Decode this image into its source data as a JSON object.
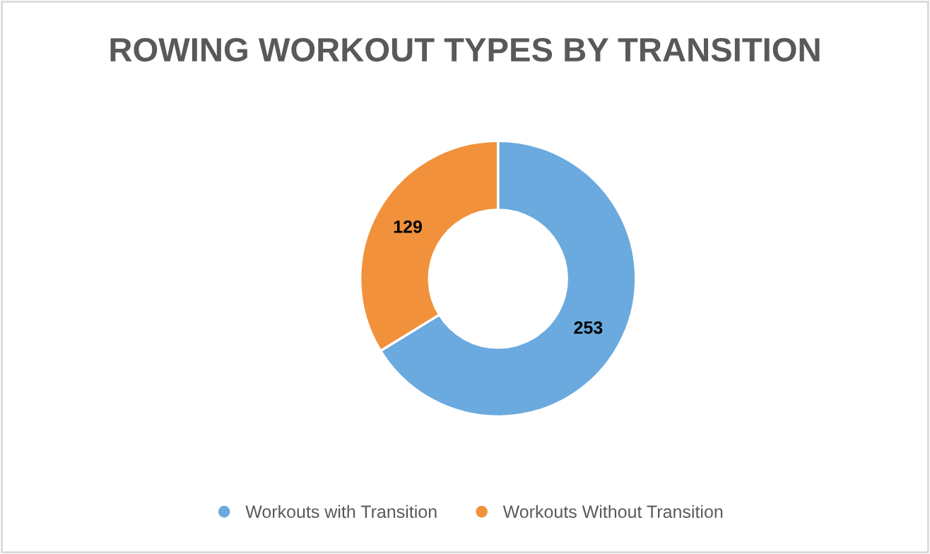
{
  "chart_data": {
    "type": "donut",
    "title": "ROWING WORKOUT TYPES BY TRANSITION",
    "categories": [
      "Workouts with Transition",
      "Workouts Without Transition"
    ],
    "values": [
      253,
      129
    ],
    "colors": [
      "#6aaade",
      "#f1913c"
    ],
    "data_labels": true,
    "legend": "bottom"
  }
}
